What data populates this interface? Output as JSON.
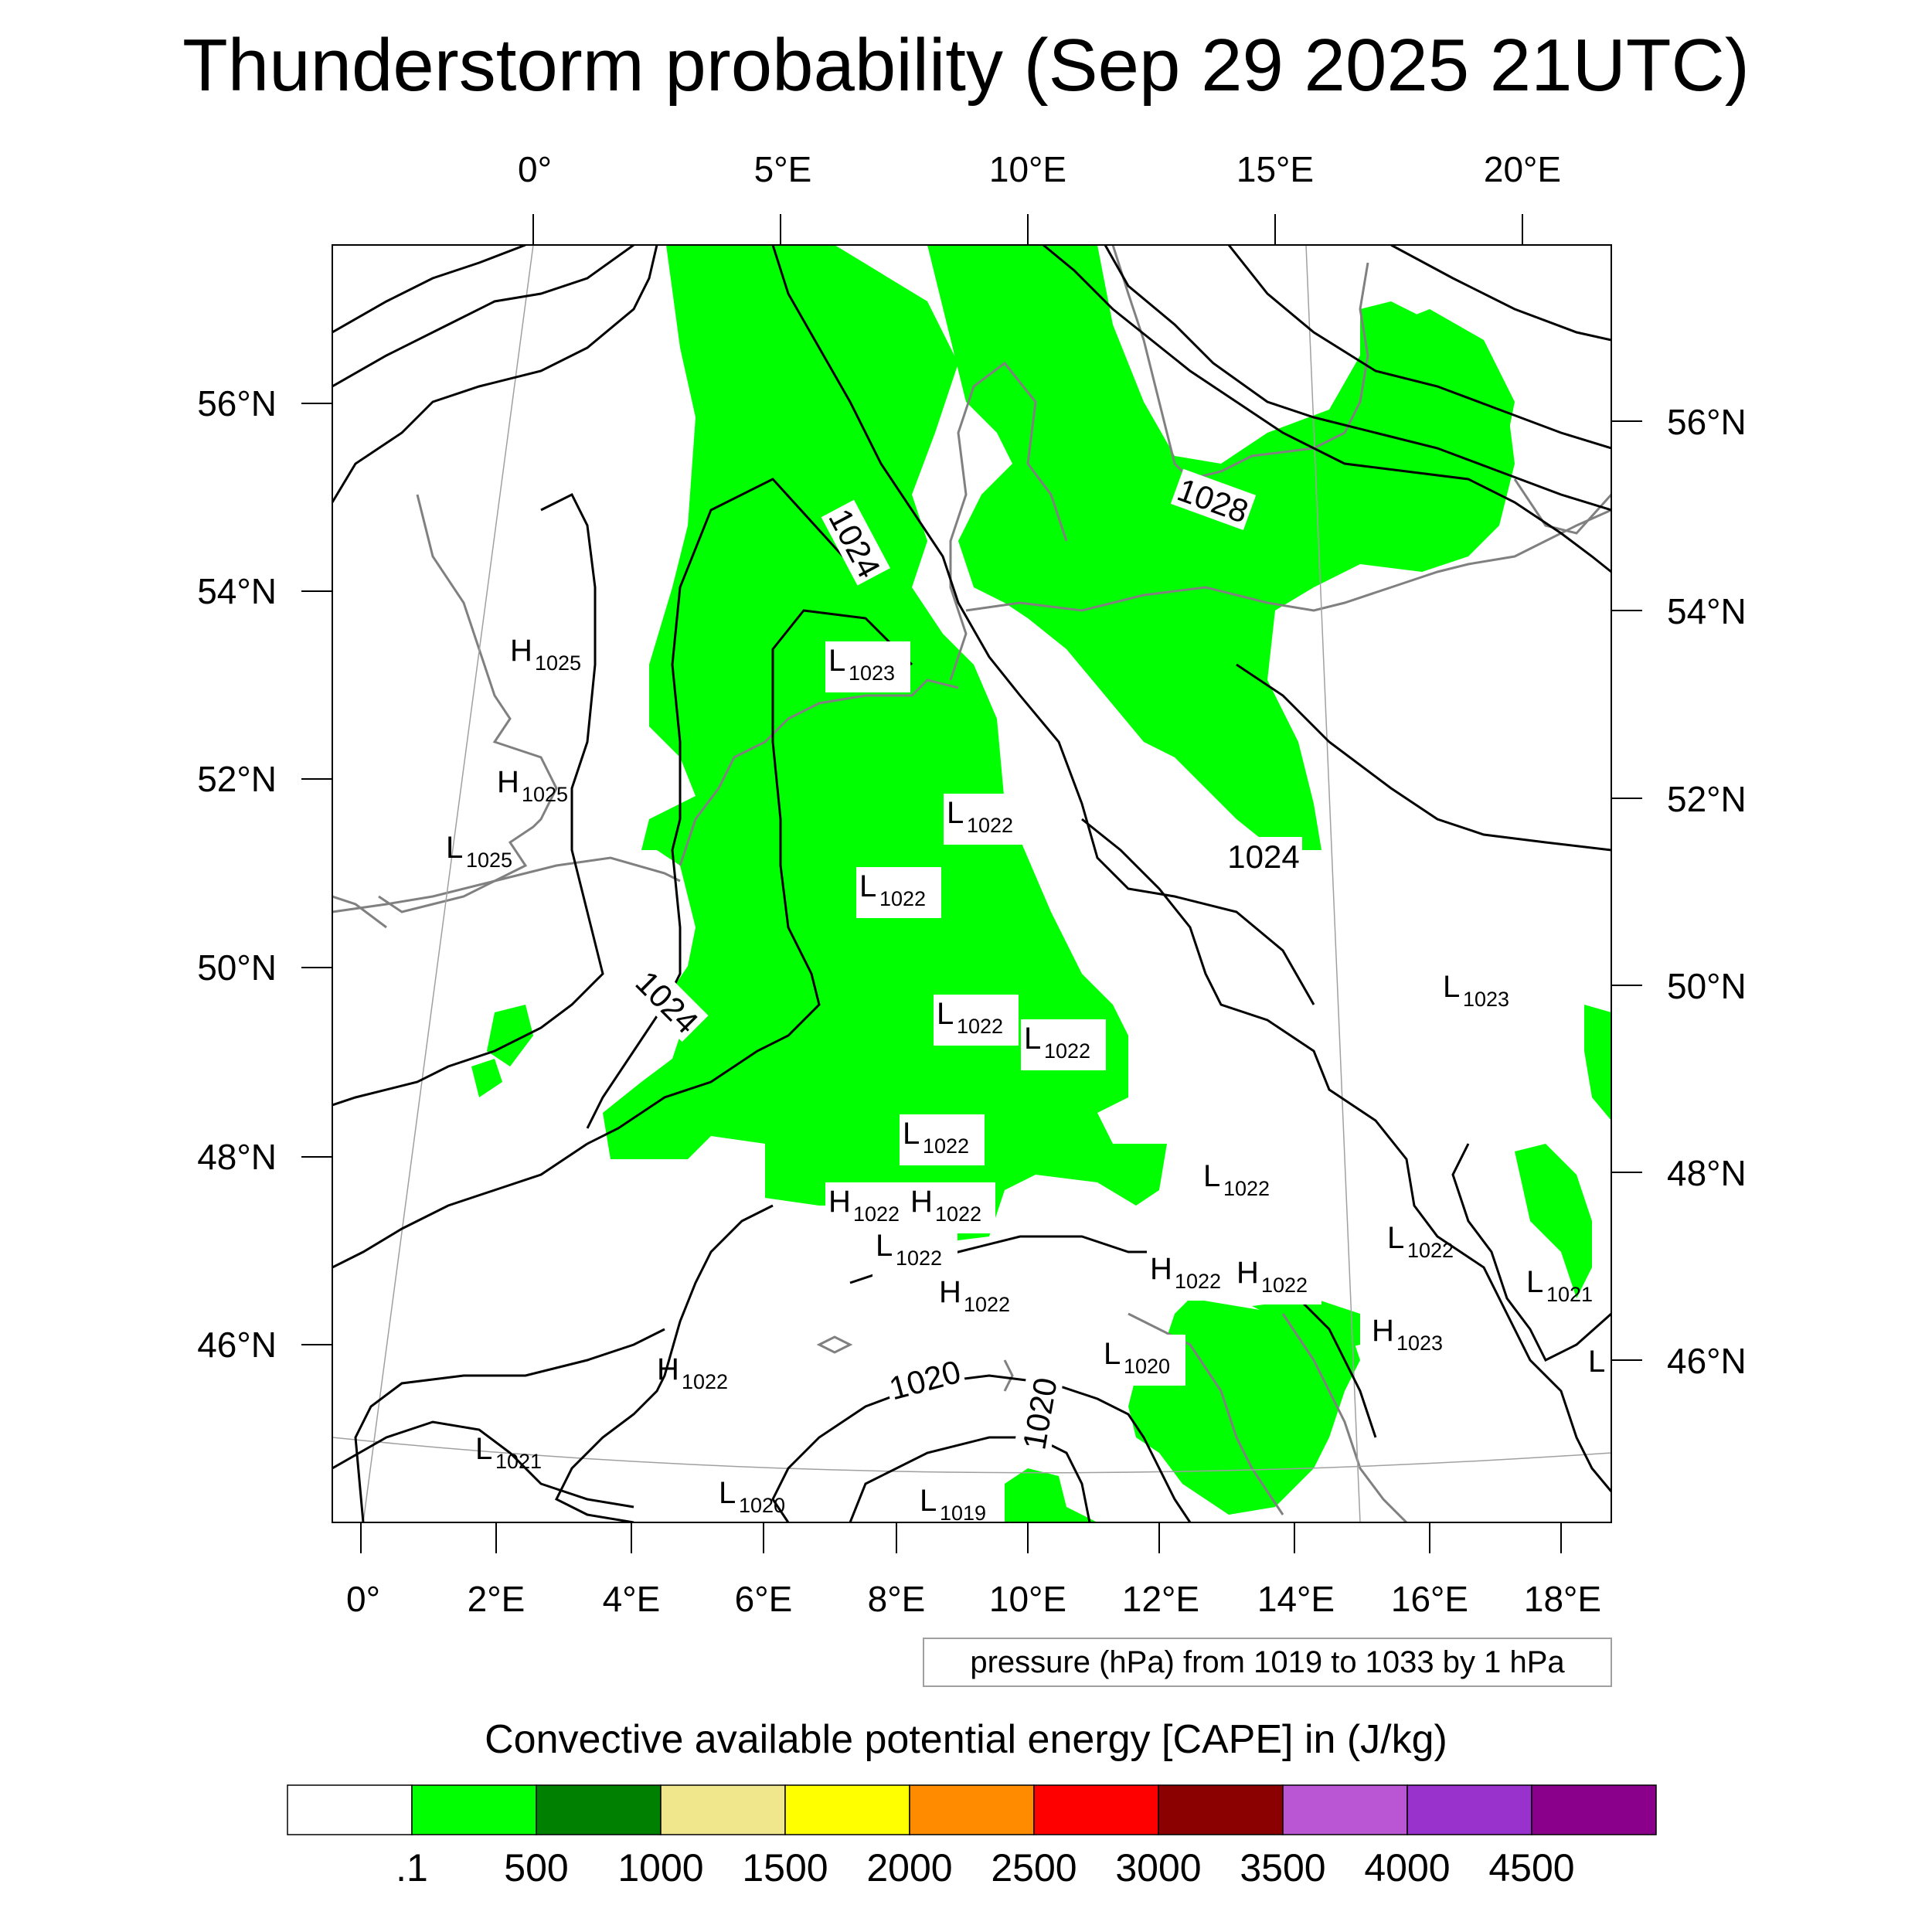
{
  "title": "Thunderstorm probability (Sep 29 2025 21UTC)",
  "top_lon_labels": [
    "0°",
    "5°E",
    "10°E",
    "15°E",
    "20°E"
  ],
  "bottom_lon_labels": [
    "0°",
    "2°E",
    "4°E",
    "6°E",
    "8°E",
    "10°E",
    "12°E",
    "14°E",
    "16°E",
    "18°E"
  ],
  "left_lat_labels": [
    "56°N",
    "54°N",
    "52°N",
    "50°N",
    "48°N",
    "46°N"
  ],
  "right_lat_labels": [
    "56°N",
    "54°N",
    "52°N",
    "50°N",
    "48°N",
    "46°N"
  ],
  "contour_labels": [
    "1024",
    "1028",
    "1024",
    "1024",
    "1020",
    "1020"
  ],
  "pressure_centers": [
    {
      "t": "H",
      "v": "1025"
    },
    {
      "t": "H",
      "v": "1025"
    },
    {
      "t": "L",
      "v": "1025"
    },
    {
      "t": "L",
      "v": "1023"
    },
    {
      "t": "L",
      "v": "1022"
    },
    {
      "t": "L",
      "v": "1022"
    },
    {
      "t": "L",
      "v": "1022"
    },
    {
      "t": "L",
      "v": "1022"
    },
    {
      "t": "L",
      "v": "1022"
    },
    {
      "t": "L",
      "v": "1022"
    },
    {
      "t": "H",
      "v": "1022"
    },
    {
      "t": "H",
      "v": "1022"
    },
    {
      "t": "L",
      "v": "1022"
    },
    {
      "t": "H",
      "v": "1022"
    },
    {
      "t": "H",
      "v": "1022"
    },
    {
      "t": "H",
      "v": "1022"
    },
    {
      "t": "L",
      "v": "1022"
    },
    {
      "t": "H",
      "v": "1023"
    },
    {
      "t": "L",
      "v": "1023"
    },
    {
      "t": "L",
      "v": "1021"
    },
    {
      "t": "H",
      "v": "1022"
    },
    {
      "t": "L",
      "v": "1020"
    },
    {
      "t": "L",
      "v": "1021"
    },
    {
      "t": "L",
      "v": "1020"
    },
    {
      "t": "L",
      "v": "1019"
    },
    {
      "t": "L",
      "v": ""
    }
  ],
  "pressure_info": "pressure (hPa) from 1019 to 1033 by 1 hPa",
  "legend": {
    "title": "Convective available potential energy [CAPE] in (J/kg)",
    "colors": [
      "#ffffff",
      "#00ff00",
      "#008000",
      "#f0e68c",
      "#ffff00",
      "#ff8c00",
      "#ff0000",
      "#8b0000",
      "#ba55d3",
      "#9932cc",
      "#8b008b"
    ],
    "labels": [
      ".1",
      "500",
      "1000",
      "1500",
      "2000",
      "2500",
      "3000",
      "3500",
      "4000",
      "4500"
    ]
  },
  "colors": {
    "cape_fill": "#00ff00",
    "coast": "#808080",
    "isobar": "#000000"
  }
}
